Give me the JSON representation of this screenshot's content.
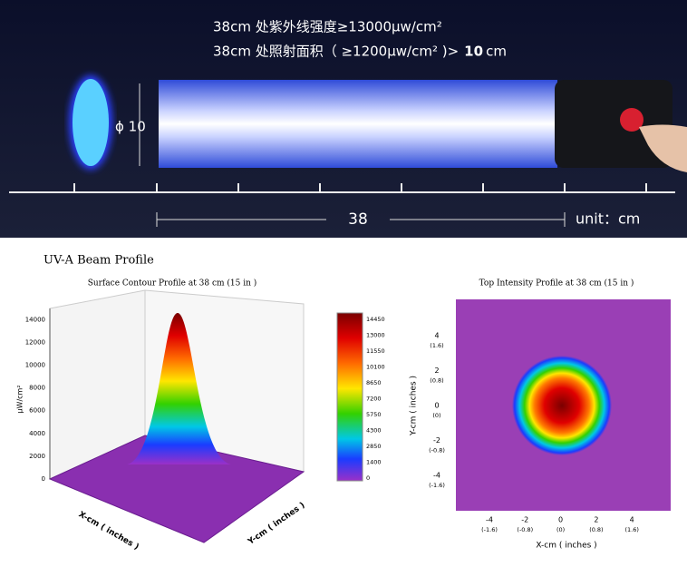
{
  "banner": {
    "line1": "38cm 处紫外线强度≥13000μw/cm²",
    "line2": "38cm 处照射面积（ ≥1200μw/cm² )>",
    "line2_bold": "10",
    "line2_unit": "cm",
    "diameter": "ϕ 10",
    "distance": "38",
    "unit": "unit：cm"
  },
  "section_title": "UV-A Beam Profile",
  "surface": {
    "title": "Surface Contour Profile at 38 cm (15 in )",
    "z_label": "μW/cm²",
    "z_ticks": [
      "0",
      "2000",
      "4000",
      "6000",
      "8000",
      "10000",
      "12000",
      "14000"
    ],
    "x_label": "X-cm ( inches )",
    "y_label": "Y-cm ( inches )",
    "colorbar": [
      "14450",
      "13000",
      "11550",
      "10100",
      "8650",
      "7200",
      "5750",
      "4300",
      "2850",
      "1400",
      "0"
    ]
  },
  "top": {
    "title": "Top Intensity Profile at 38 cm (15 in )",
    "x_label": "X-cm ( inches )",
    "y_label": "Y-cm ( inches )",
    "x_ticks": [
      {
        "cm": "-4",
        "in": "(-1.6)"
      },
      {
        "cm": "-2",
        "in": "(-0.8)"
      },
      {
        "cm": "0",
        "in": "(0)"
      },
      {
        "cm": "2",
        "in": "(0.8)"
      },
      {
        "cm": "4",
        "in": "(1.6)"
      }
    ],
    "y_ticks": [
      {
        "cm": "4",
        "in": "(1.6)"
      },
      {
        "cm": "2",
        "in": "(0.8)"
      },
      {
        "cm": "0",
        "in": "(0)"
      },
      {
        "cm": "-2",
        "in": "(-0.8)"
      },
      {
        "cm": "-4",
        "in": "(-1.6)"
      }
    ]
  }
}
